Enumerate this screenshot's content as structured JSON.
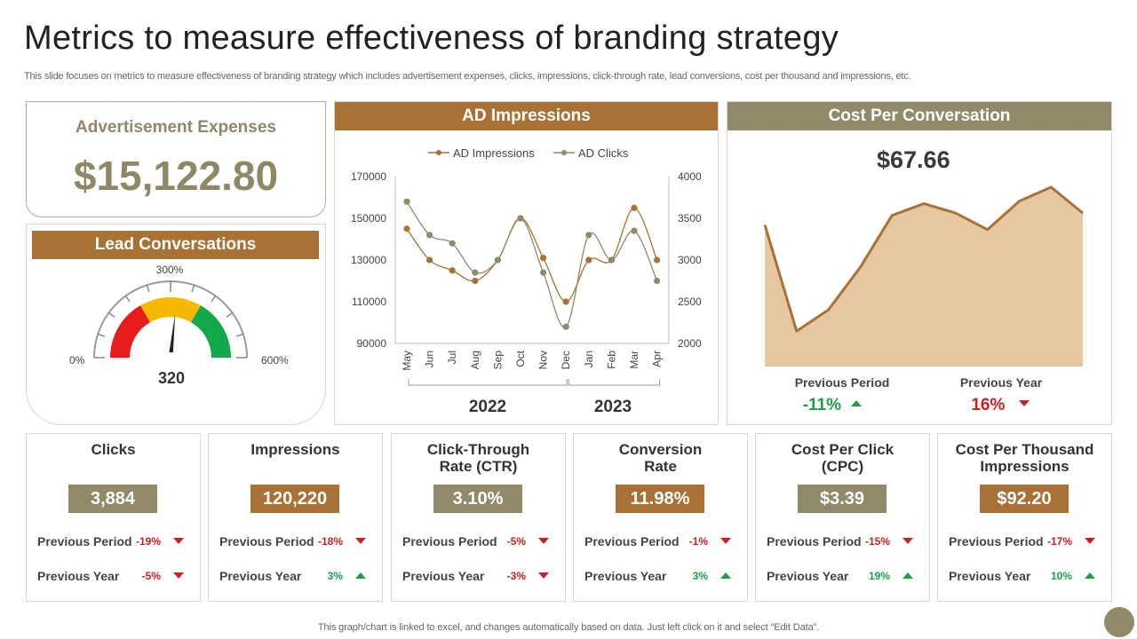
{
  "title": "Metrics to measure effectiveness of branding strategy",
  "subtitle": "This slide focuses on metrics to measure effectiveness of branding strategy which includes advertisement expenses, clicks, impressions, click-through rate, lead conversions, cost per thousand and impressions, etc.",
  "ad_expenses": {
    "label": "Advertisement Expenses",
    "value": "$15,122.80"
  },
  "lead": {
    "title": "Lead Conversations",
    "min_label": "0%",
    "mid_label": "300%",
    "max_label": "600%",
    "value": "320"
  },
  "impressions_panel": {
    "title": "AD Impressions"
  },
  "cost_per_conversation": {
    "title": "Cost Per Conversation",
    "value": "$67.66",
    "prev_period_label": "Previous Period",
    "prev_period_value": "-11%",
    "prev_year_label": "Previous Year",
    "prev_year_value": "16%"
  },
  "kpis": [
    {
      "title": "Clicks",
      "value": "3,884",
      "pp_label": "Previous Period",
      "pp": "-19%",
      "py_label": "Previous Year",
      "py": "-5%"
    },
    {
      "title": "Impressions",
      "value": "120,220",
      "pp_label": "Previous Period",
      "pp": "-18%",
      "py_label": "Previous Year",
      "py": "3%"
    },
    {
      "title1": "Click-Through",
      "title2": "Rate (CTR)",
      "value": "3.10%",
      "pp_label": "Previous Period",
      "pp": "-5%",
      "py_label": "Previous Year",
      "py": "-3%"
    },
    {
      "title1": "Conversion",
      "title2": "Rate",
      "value": "11.98%",
      "pp_label": "Previous Period",
      "pp": "-1%",
      "py_label": "Previous Year",
      "py": "3%"
    },
    {
      "title1": "Cost Per Click",
      "title2": "(CPC)",
      "value": "$3.39",
      "pp_label": "Previous Period",
      "pp": "-15%",
      "py_label": "Previous Year",
      "py": "19%"
    },
    {
      "title1": "Cost Per Thousand",
      "title2": "Impressions",
      "value": "$92.20",
      "pp_label": "Previous Period",
      "pp": "-17%",
      "py_label": "Previous Year",
      "py": "10%"
    }
  ],
  "footer": "This graph/chart is linked to excel,  and changes automatically based on data. Just left click on it and select “Edit Data”.",
  "chart_data": [
    {
      "type": "line",
      "title": "AD Impressions",
      "categories": [
        "May",
        "Jun",
        "Jul",
        "Aug",
        "Sep",
        "Oct",
        "Nov",
        "Dec",
        "Jan",
        "Feb",
        "Mar",
        "Apr"
      ],
      "groups": [
        "2022",
        "2023"
      ],
      "y_left_ticks": [
        "170000",
        "150000",
        "130000",
        "110000",
        "90000"
      ],
      "y_right_ticks": [
        "4000",
        "3500",
        "3000",
        "2500",
        "2000"
      ],
      "ylim_left": [
        90000,
        170000
      ],
      "ylim_right": [
        2000,
        4000
      ],
      "series": [
        {
          "name": "AD Impressions",
          "axis": "left",
          "color": "#a87236",
          "values": [
            145000,
            130000,
            125000,
            120000,
            130000,
            150000,
            131000,
            110000,
            130000,
            130000,
            155000,
            130000
          ]
        },
        {
          "name": "AD Clicks",
          "axis": "right",
          "color": "#908a6a",
          "values": [
            3700,
            3300,
            3200,
            2850,
            3000,
            3500,
            2850,
            2200,
            3300,
            3000,
            3350,
            2750
          ]
        }
      ]
    },
    {
      "type": "area",
      "title": "Cost Per Conversation",
      "ylim": [
        0,
        100
      ],
      "values": [
        60,
        15,
        24,
        42,
        64,
        69,
        65,
        58,
        70,
        76,
        65
      ]
    },
    {
      "type": "gauge",
      "title": "Lead Conversations",
      "range": [
        0,
        600
      ],
      "value": 320,
      "bands": [
        {
          "from": 0,
          "to": 200,
          "color": "#e81c1c"
        },
        {
          "from": 200,
          "to": 400,
          "color": "#f6b800"
        },
        {
          "from": 400,
          "to": 600,
          "color": "#13a94b"
        }
      ]
    }
  ]
}
